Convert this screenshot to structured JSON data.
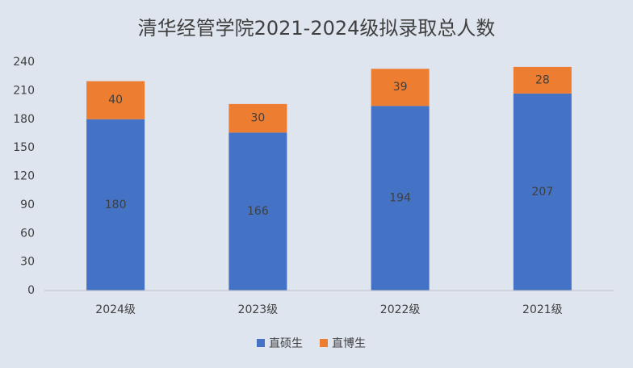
{
  "chart_data": {
    "type": "stacked_bar",
    "title": "清华经管学院2021-2024级拟录取总人数",
    "categories": [
      "2024级",
      "2023级",
      "2022级",
      "2021级"
    ],
    "series": [
      {
        "name": "直硕生",
        "color": "#4472c4",
        "values": [
          180,
          166,
          194,
          207
        ]
      },
      {
        "name": "直博生",
        "color": "#ed7d31",
        "values": [
          40,
          30,
          39,
          28
        ]
      }
    ],
    "ylim": [
      0,
      240
    ],
    "yticks": [
      0,
      30,
      60,
      90,
      120,
      150,
      180,
      210,
      240
    ],
    "grid": false,
    "legend": "bottom"
  }
}
